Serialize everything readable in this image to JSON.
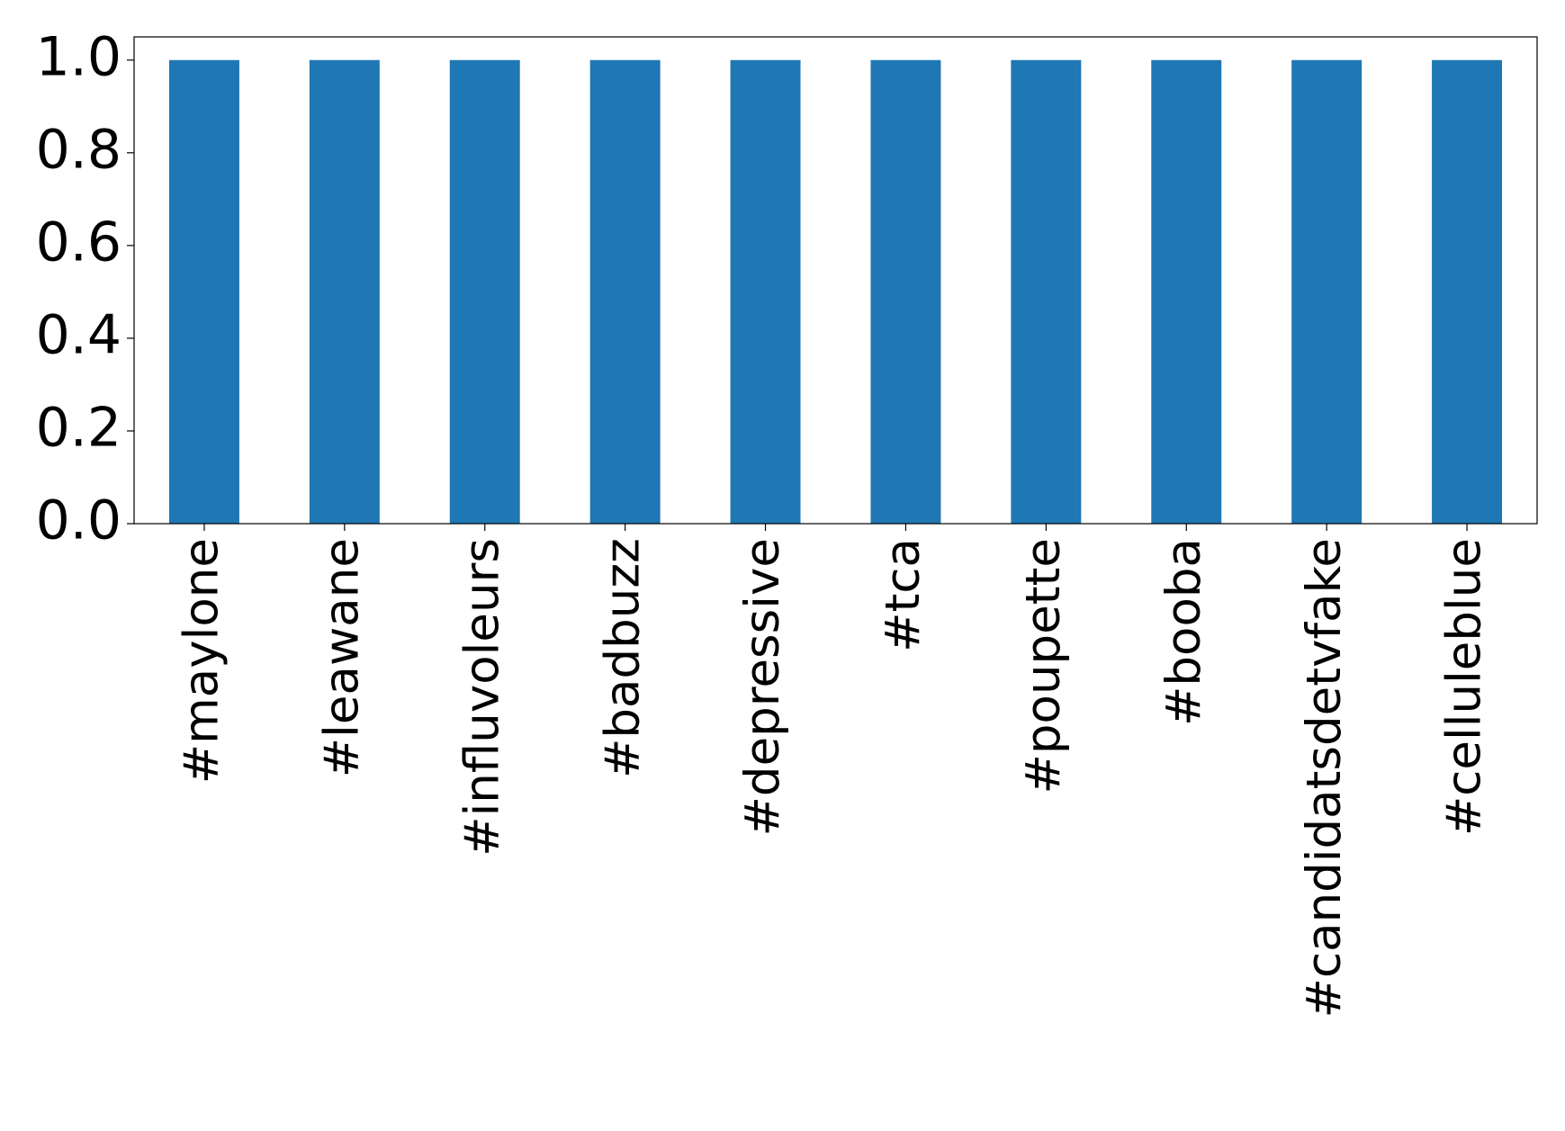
{
  "chart_data": {
    "type": "bar",
    "categories": [
      "#maylone",
      "#leawane",
      "#influvoleurs",
      "#badbuzz",
      "#depressive",
      "#tca",
      "#poupette",
      "#booba",
      "#candidatsdetvfake",
      "#celluleblue"
    ],
    "values": [
      1,
      1,
      1,
      1,
      1,
      1,
      1,
      1,
      1,
      1
    ],
    "color": "#1f77b4",
    "ylim": [
      0,
      1.05
    ],
    "yticks": [
      {
        "value": 0,
        "label": "0.0"
      },
      0.2,
      0.4,
      0.6,
      0.8,
      {
        "value": 1,
        "label": "1.0"
      }
    ],
    "grid": false
  }
}
